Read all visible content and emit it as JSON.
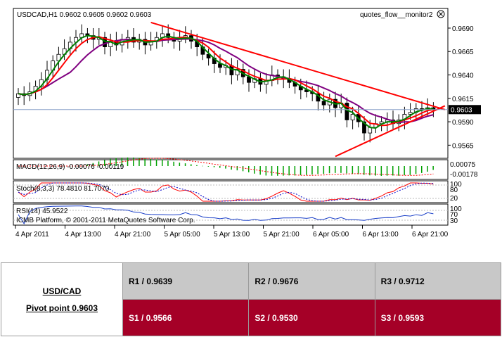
{
  "chart_data": {
    "type": "candlestick",
    "symbol_header": "USDCAD,H1  0.9602 0.9605 0.9602 0.9603",
    "indicator_label": "quotes_flow__monitor2",
    "current_price_label": "0.9603",
    "current_price": 0.9603,
    "y_ticks": [
      "0.9690",
      "0.9665",
      "0.9640",
      "0.9615",
      "0.9590",
      "0.9565"
    ],
    "y_tick_values": [
      0.969,
      0.9665,
      0.964,
      0.9615,
      0.959,
      0.9565
    ],
    "ylim": [
      0.9551,
      0.9711
    ],
    "x_ticks": [
      "4 Apr 2011",
      "4 Apr 13:00",
      "4 Apr 21:00",
      "5 Apr 05:00",
      "5 Apr 13:00",
      "5 Apr 21:00",
      "6 Apr 05:00",
      "6 Apr 13:00",
      "6 Apr 21:00"
    ],
    "grid": false,
    "closes": [
      0.962,
      0.9618,
      0.9622,
      0.9628,
      0.9635,
      0.9645,
      0.9655,
      0.9662,
      0.9668,
      0.9675,
      0.968,
      0.9684,
      0.9682,
      0.9678,
      0.968,
      0.967,
      0.9676,
      0.9672,
      0.9678,
      0.968,
      0.9675,
      0.9678,
      0.9672,
      0.9676,
      0.968,
      0.9684,
      0.968,
      0.9676,
      0.968,
      0.9682,
      0.9676,
      0.967,
      0.9662,
      0.9658,
      0.9652,
      0.9648,
      0.965,
      0.964,
      0.9646,
      0.9638,
      0.9632,
      0.9636,
      0.963,
      0.9634,
      0.964,
      0.9638,
      0.9636,
      0.9632,
      0.9628,
      0.9624,
      0.9622,
      0.962,
      0.9612,
      0.9608,
      0.9614,
      0.9605,
      0.961,
      0.9592,
      0.9598,
      0.959,
      0.9578,
      0.9584,
      0.9588,
      0.959,
      0.9592,
      0.9588,
      0.9592,
      0.9598,
      0.96,
      0.9604,
      0.9603,
      0.9605,
      0.9603
    ],
    "trendlines": [
      {
        "name": "resistance",
        "color": "#ff0000",
        "points": [
          [
            23,
            0.9696
          ],
          [
            74,
            0.9603
          ]
        ]
      },
      {
        "name": "support",
        "color": "#ff0000",
        "points": [
          [
            55,
            0.9553
          ],
          [
            74,
            0.9607
          ]
        ]
      }
    ],
    "ma_colors": {
      "fast": "#008000",
      "mid": "#ff0000",
      "slow": "#800080"
    },
    "panels": [
      {
        "label": "MACD(12,26,9) -0.00076 -0.00119",
        "ticks": [
          "0.00075",
          "-0.00178"
        ]
      },
      {
        "label": "Stoch(8,3,3) 78.4810 81.7070",
        "ticks": [
          "100",
          "80",
          "20"
        ]
      },
      {
        "label": "RSI(14) 45.9522",
        "ticks": [
          "100",
          "70",
          "30"
        ]
      }
    ],
    "copyright": "ICMB Platform, © 2001-2011 MetaQuotes Software Corp."
  },
  "pivot_table": {
    "symbol": "USD/CAD",
    "pivot": "Pivot point 0.9603",
    "r1": "R1 / 0.9639",
    "r2": "R2 / 0.9676",
    "r3": "R3 / 0.9712",
    "s1": "S1 / 0.9566",
    "s2": "S2 / 0.9530",
    "s3": "S3 / 0.9593"
  },
  "colors": {
    "bull": "#ffffff",
    "bear": "#000000",
    "wick": "#000000",
    "resistance": "#c8c8c8",
    "support": "#a50027"
  }
}
